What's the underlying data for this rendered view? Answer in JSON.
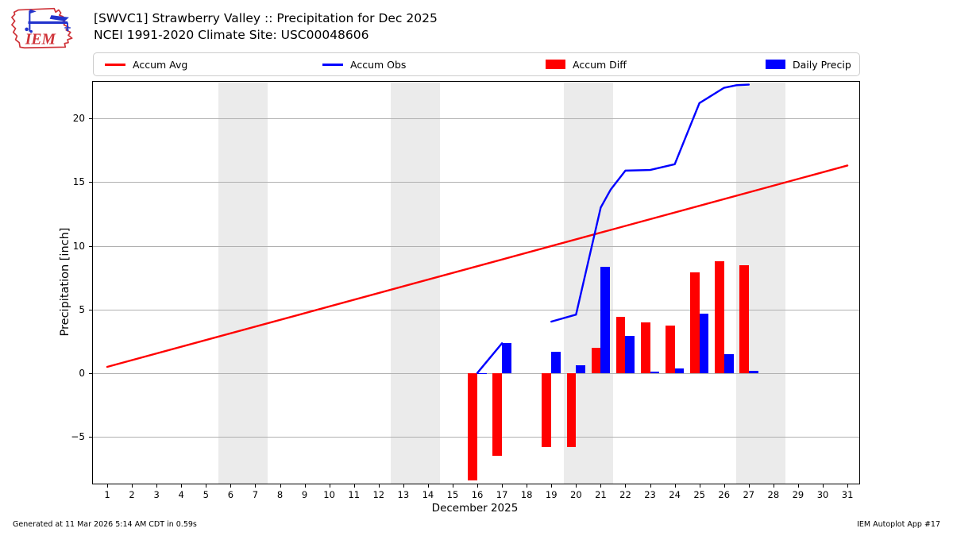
{
  "header": {
    "title_line1": "[SWVC1] Strawberry Valley :: Precipitation for Dec 2025",
    "title_line2": "NCEI 1991-2020 Climate Site: USC00048606",
    "logo_text": "IEM"
  },
  "legend": {
    "items": [
      {
        "label": "Accum Avg",
        "swatch": "line",
        "color": "#ff0000"
      },
      {
        "label": "Accum Obs",
        "swatch": "line",
        "color": "#0000ff"
      },
      {
        "label": "Accum Diff",
        "swatch": "rect",
        "color": "#ff0000"
      },
      {
        "label": "Daily Precip",
        "swatch": "rect",
        "color": "#0000ff"
      }
    ]
  },
  "footer": {
    "generated": "Generated at 11 Mar 2026 5:14 AM CDT in 0.59s",
    "app": "IEM Autoplot App #17"
  },
  "chart_data": {
    "type": "bar",
    "title": "[SWVC1] Strawberry Valley :: Precipitation for Dec 2025",
    "subtitle": "NCEI 1991-2020 Climate Site: USC00048606",
    "xlabel": "December 2025",
    "ylabel": "Precipitation [inch]",
    "xlim": [
      0.42,
      31.48
    ],
    "ylim": [
      -8.66,
      22.87
    ],
    "grid": true,
    "grid_color": "#b0b0b0",
    "band_color": "#ebebeb",
    "weekend_bands": [
      [
        5.5,
        7.5
      ],
      [
        12.5,
        14.5
      ],
      [
        19.5,
        21.5
      ],
      [
        26.5,
        28.5
      ]
    ],
    "bar_width_days": 0.38,
    "xticks": [
      1,
      2,
      3,
      4,
      5,
      6,
      7,
      8,
      9,
      10,
      11,
      12,
      13,
      14,
      15,
      16,
      17,
      18,
      19,
      20,
      21,
      22,
      23,
      24,
      25,
      26,
      27,
      28,
      29,
      30,
      31
    ],
    "yticks": [
      {
        "v": -5,
        "label": "−5"
      },
      {
        "v": 0,
        "label": "0"
      },
      {
        "v": 5,
        "label": "5"
      },
      {
        "v": 10,
        "label": "10"
      },
      {
        "v": 15,
        "label": "15"
      },
      {
        "v": 20,
        "label": "20"
      }
    ],
    "series": [
      {
        "name": "Accum Avg",
        "kind": "line",
        "color": "#ff0000",
        "stroke": 2.4,
        "segments": [
          [
            [
              1,
              0.5
            ],
            [
              31,
              16.3
            ]
          ]
        ]
      },
      {
        "name": "Accum Obs",
        "kind": "line",
        "color": "#0000ff",
        "stroke": 2.4,
        "segments": [
          [
            [
              16,
              0.02
            ],
            [
              17,
              2.35
            ]
          ],
          [
            [
              19,
              4.05
            ],
            [
              20,
              4.6
            ],
            [
              21,
              13.0
            ],
            [
              21.4,
              14.4
            ],
            [
              22,
              15.9
            ],
            [
              23,
              15.95
            ],
            [
              24,
              16.4
            ],
            [
              25,
              21.2
            ],
            [
              26,
              22.4
            ],
            [
              26.5,
              22.6
            ],
            [
              27,
              22.65
            ]
          ]
        ]
      },
      {
        "name": "Accum Diff",
        "kind": "bar",
        "color": "#ff0000",
        "side": "left",
        "data": [
          [
            16,
            -8.4
          ],
          [
            17,
            -6.5
          ],
          [
            19,
            -5.8
          ],
          [
            20,
            -5.8
          ],
          [
            21,
            2.0
          ],
          [
            22,
            4.4
          ],
          [
            23,
            4.0
          ],
          [
            24,
            3.75
          ],
          [
            25,
            7.9
          ],
          [
            26,
            8.8
          ],
          [
            27,
            8.45
          ]
        ]
      },
      {
        "name": "Daily Precip",
        "kind": "bar",
        "color": "#0000ff",
        "side": "right",
        "data": [
          [
            16,
            0.03
          ],
          [
            17,
            2.35
          ],
          [
            19,
            1.7
          ],
          [
            20,
            0.6
          ],
          [
            21,
            8.35
          ],
          [
            22,
            2.95
          ],
          [
            23,
            0.1
          ],
          [
            24,
            0.4
          ],
          [
            25,
            4.65
          ],
          [
            26,
            1.5
          ],
          [
            27,
            0.2
          ]
        ]
      }
    ]
  }
}
